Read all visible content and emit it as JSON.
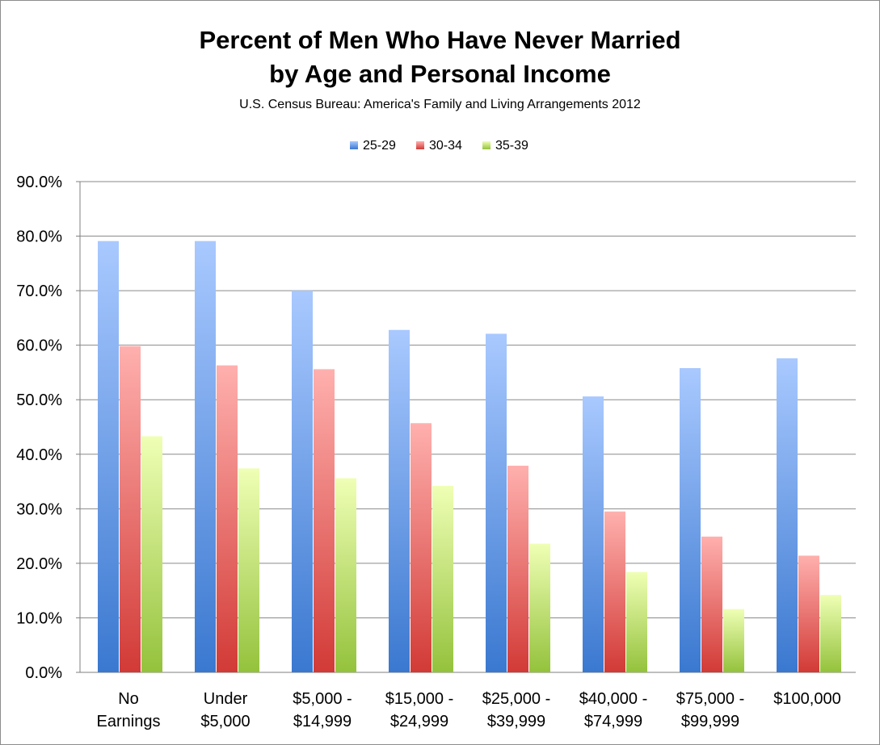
{
  "chart_data": {
    "type": "bar",
    "title": [
      "Percent of Men Who Have Never Married",
      "by Age and Personal Income"
    ],
    "subtitle": "U.S. Census Bureau: America's Family and Living Arrangements 2012",
    "xlabel": "",
    "ylabel": "",
    "categories": [
      [
        "No",
        "Earnings"
      ],
      [
        "Under",
        "$5,000"
      ],
      [
        "$5,000 -",
        "$14,999"
      ],
      [
        "$15,000 -",
        "$24,999"
      ],
      [
        "$25,000 -",
        "$39,999"
      ],
      [
        "$40,000 -",
        "$74,999"
      ],
      [
        "$75,000 -",
        "$99,999"
      ],
      [
        "$100,000"
      ]
    ],
    "series": [
      {
        "name": "25-29",
        "values": [
          79.1,
          79.1,
          70.0,
          62.8,
          62.1,
          50.6,
          55.8,
          57.6
        ]
      },
      {
        "name": "30-34",
        "values": [
          59.8,
          56.3,
          55.6,
          45.7,
          37.9,
          29.5,
          24.9,
          21.4
        ]
      },
      {
        "name": "35-39",
        "values": [
          43.3,
          37.4,
          35.6,
          34.2,
          23.6,
          18.4,
          11.6,
          14.2
        ]
      }
    ],
    "ylim": [
      0,
      90
    ],
    "yticks": [
      "0.0%",
      "10.0%",
      "20.0%",
      "30.0%",
      "40.0%",
      "50.0%",
      "60.0%",
      "70.0%",
      "80.0%",
      "90.0%"
    ],
    "grid": true,
    "legend_position": "top",
    "colors": {
      "25-29": {
        "top": "#a9c9ff",
        "bottom": "#3a78d0"
      },
      "30-34": {
        "top": "#ffb0ae",
        "bottom": "#d23a36"
      },
      "35-39": {
        "top": "#efffb5",
        "bottom": "#94c23c"
      }
    }
  }
}
